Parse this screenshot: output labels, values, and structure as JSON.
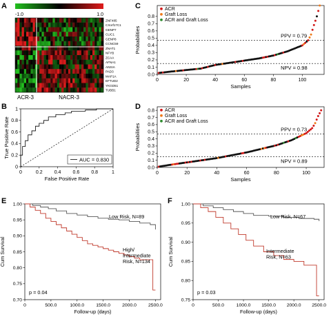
{
  "panels": {
    "A": {
      "letter": "A",
      "scale_min": "-1.0",
      "scale_max": "1.0",
      "groups": [
        "ACR-3",
        "NACR-3"
      ],
      "genes": [
        "ZNF485",
        "CXorf17C1",
        "GENP7",
        "CLIC1",
        "GENP8",
        "CCNC59",
        "ZNAT1",
        "NFYB",
        "ZCAA",
        "AFNA1",
        "ANSIA",
        "PAD3",
        "MAP1A",
        "EFTUD2",
        "YKGD51",
        "TUBB1"
      ],
      "colors": {
        "low": "#22c01e",
        "mid": "#000000",
        "high": "#e01b1b"
      }
    },
    "B": {
      "letter": "B",
      "legend_label": "AUC = 0.830"
    },
    "C": {
      "letter": "C",
      "ppv_label": "PPV = 0.79",
      "npv_label": "NPV = 0.98"
    },
    "D": {
      "letter": "D",
      "ppv_label": "PPV = 0.73",
      "npv_label": "NPV = 0.89"
    },
    "E": {
      "letter": "E",
      "p_label": "p = 0.04"
    },
    "F": {
      "letter": "F",
      "p_label": "p = 0.03"
    }
  },
  "legend_colors": {
    "ACR": "#d11a1a",
    "Graft Loss": "#f07a1a",
    "ACR and Graft Loss": "#2e8b2e"
  },
  "chart_data": [
    {
      "panel": "B",
      "type": "line",
      "xlabel": "False Positive Rate",
      "ylabel": "True Positive Rate",
      "xlim": [
        0,
        1
      ],
      "ylim": [
        0,
        1
      ],
      "xticks": [
        "0",
        "0.2",
        "0.4",
        "0.6",
        "0.8",
        "1"
      ],
      "yticks": [
        "0",
        "0.2",
        "0.4",
        "0.6",
        "0.8",
        "1"
      ],
      "auc": 0.83,
      "series": [
        {
          "name": "AUC = 0.830",
          "x": [
            0,
            0,
            0.02,
            0.02,
            0.05,
            0.05,
            0.08,
            0.08,
            0.12,
            0.12,
            0.16,
            0.16,
            0.2,
            0.2,
            0.25,
            0.25,
            0.3,
            0.3,
            0.38,
            0.38,
            0.48,
            0.48,
            0.55,
            0.55,
            0.7,
            0.7,
            0.82,
            0.82,
            1
          ],
          "y": [
            0,
            0.2,
            0.2,
            0.35,
            0.35,
            0.45,
            0.45,
            0.55,
            0.55,
            0.62,
            0.62,
            0.7,
            0.7,
            0.75,
            0.75,
            0.8,
            0.8,
            0.86,
            0.86,
            0.9,
            0.9,
            0.93,
            0.93,
            0.96,
            0.96,
            0.98,
            0.98,
            1,
            1
          ]
        },
        {
          "x": [
            0,
            1
          ],
          "y": [
            0,
            1
          ],
          "dashed": true
        }
      ],
      "grid": false
    },
    {
      "panel": "C",
      "type": "scatter",
      "xlabel": "Samples",
      "ylabel": "Probabilities",
      "xlim": [
        0,
        115
      ],
      "ylim": [
        0,
        0.95
      ],
      "xticks": [
        "0",
        "20",
        "40",
        "60",
        "80",
        "100"
      ],
      "yticks": [
        "0.0",
        "0.1",
        "0.2",
        "0.3",
        "0.4",
        "0.5",
        "0.6",
        "0.7",
        "0.8"
      ],
      "n_samples": 112,
      "prob_anchors": {
        "x": [
          1,
          10,
          20,
          30,
          40,
          50,
          60,
          70,
          80,
          90,
          95,
          100,
          104,
          106,
          108,
          110,
          112
        ],
        "y": [
          0.02,
          0.04,
          0.06,
          0.08,
          0.13,
          0.16,
          0.19,
          0.22,
          0.26,
          0.32,
          0.36,
          0.4,
          0.47,
          0.55,
          0.68,
          0.8,
          0.95
        ]
      },
      "thresholds": {
        "PPV": 0.47,
        "NPV": 0.15
      },
      "legend": [
        "ACR",
        "Graft Loss",
        "ACR and Graft Loss"
      ],
      "legend_position": "top-left",
      "acr_from_index": 100,
      "grid": false
    },
    {
      "panel": "D",
      "type": "scatter",
      "xlabel": "Samples",
      "ylabel": "Probabilities",
      "xlim": [
        0,
        112
      ],
      "ylim": [
        0,
        0.85
      ],
      "xticks": [
        "0",
        "20",
        "40",
        "60",
        "80",
        "100"
      ],
      "yticks": [
        "0.0",
        "0.1",
        "0.2",
        "0.3",
        "0.4",
        "0.5",
        "0.6",
        "0.7",
        "0.8"
      ],
      "n_samples": 110,
      "prob_anchors": {
        "x": [
          1,
          10,
          20,
          30,
          40,
          50,
          60,
          70,
          80,
          90,
          95,
          100,
          104,
          106,
          108,
          110
        ],
        "y": [
          0.01,
          0.04,
          0.07,
          0.1,
          0.13,
          0.17,
          0.21,
          0.26,
          0.31,
          0.38,
          0.43,
          0.48,
          0.55,
          0.62,
          0.72,
          0.8
        ]
      },
      "thresholds": {
        "PPV": 0.47,
        "NPV": 0.15
      },
      "legend": [
        "ACR",
        "Graft Loss",
        "ACR and Graft Loss"
      ],
      "legend_position": "top-left",
      "acr_from_index": 95,
      "grid": false
    },
    {
      "panel": "E",
      "type": "line",
      "xlabel": "Follow-up (days)",
      "ylabel": "Cum Survival",
      "xlim": [
        0,
        2600
      ],
      "ylim": [
        0.7,
        1.0
      ],
      "xticks": [
        "0",
        "500.0",
        "1000.0",
        "1500.0",
        "2000.0",
        "2500.0"
      ],
      "yticks": [
        "0.70",
        "0.75",
        "0.80",
        "0.85",
        "0.90",
        "0.95",
        "1.00"
      ],
      "series": [
        {
          "name": "Low Risk, N=89",
          "x": [
            0,
            150,
            300,
            450,
            600,
            800,
            1000,
            1200,
            1400,
            1600,
            1800,
            2000,
            2200,
            2400,
            2500
          ],
          "y": [
            1.0,
            0.995,
            0.99,
            0.985,
            0.978,
            0.97,
            0.965,
            0.96,
            0.955,
            0.952,
            0.95,
            0.945,
            0.94,
            0.935,
            0.92
          ]
        },
        {
          "name": "High/ Intermediate Risk, N=134",
          "x": [
            0,
            100,
            200,
            300,
            400,
            500,
            600,
            700,
            800,
            900,
            1000,
            1100,
            1200,
            1300,
            1400,
            1500,
            1600,
            1700,
            1800,
            1900,
            2000,
            2100,
            2200,
            2400,
            2450,
            2500
          ],
          "y": [
            1.0,
            0.99,
            0.98,
            0.97,
            0.955,
            0.945,
            0.935,
            0.925,
            0.915,
            0.905,
            0.895,
            0.885,
            0.875,
            0.87,
            0.865,
            0.86,
            0.855,
            0.85,
            0.845,
            0.84,
            0.835,
            0.83,
            0.825,
            0.825,
            0.73,
            0.73
          ]
        }
      ],
      "p_value": "0.04",
      "grid": false
    },
    {
      "panel": "F",
      "type": "line",
      "xlabel": "Follow-up (days)",
      "ylabel": "Cum Survival",
      "xlim": [
        0,
        2600
      ],
      "ylim": [
        0.75,
        1.0
      ],
      "xticks": [
        "0",
        "500.0",
        "1000.0",
        "1500.0",
        "2000.0",
        "2500.0"
      ],
      "yticks": [
        "0.75",
        "0.80",
        "0.85",
        "0.90",
        "0.95",
        "1.00"
      ],
      "series": [
        {
          "name": "Low Risk, N=67",
          "x": [
            0,
            200,
            400,
            600,
            800,
            1000,
            1200,
            1500,
            1800,
            2100,
            2400,
            2500
          ],
          "y": [
            1.0,
            0.995,
            0.99,
            0.985,
            0.98,
            0.975,
            0.97,
            0.968,
            0.965,
            0.962,
            0.96,
            0.955
          ]
        },
        {
          "name": "Intermediate Risk, N=63",
          "x": [
            0,
            150,
            300,
            450,
            600,
            750,
            900,
            1050,
            1200,
            1400,
            1600,
            1800,
            2000,
            2200,
            2450,
            2500
          ],
          "y": [
            1.0,
            0.99,
            0.98,
            0.965,
            0.95,
            0.935,
            0.92,
            0.905,
            0.89,
            0.875,
            0.865,
            0.855,
            0.85,
            0.84,
            0.76,
            0.76
          ]
        }
      ],
      "p_value": "0.03",
      "grid": false
    }
  ]
}
